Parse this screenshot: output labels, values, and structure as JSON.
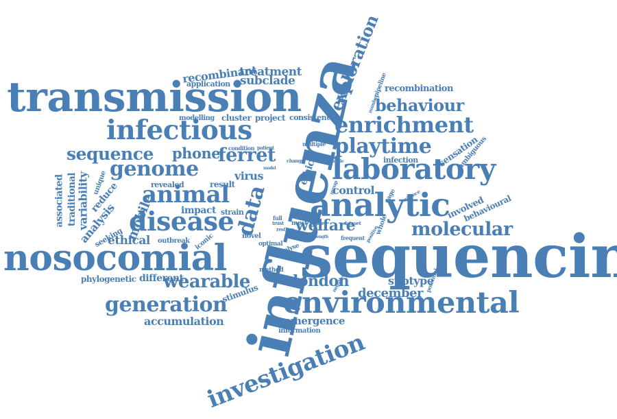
{
  "colors": {
    "word": "#4a7fb5",
    "background": "#ffffff"
  },
  "words": {
    "influenza": "influenza",
    "sequencing": "sequencing",
    "transmission": "transmission",
    "nosocomial": "nosocomial",
    "environmental": "environmental",
    "analytic": "analytic",
    "laboratory": "laboratory",
    "infectious": "infectious",
    "investigation": "investigation",
    "disease": "disease",
    "exploration": "exploration",
    "enrichment": "enrichment",
    "animal": "animal",
    "genome": "genome",
    "generation": "generation",
    "playtime": "playtime",
    "molecular": "molecular",
    "behaviour": "behaviour",
    "sequence": "sequence",
    "ferret": "ferret",
    "data": "data",
    "welfare": "welfare",
    "london": "london",
    "wearable": "wearable",
    "phone": "phone",
    "mobile": "mobile",
    "accumulation": "accumulation",
    "ethical": "ethical",
    "emergence": "emergence",
    "recombinant": "recombinant",
    "treatment": "treatment",
    "subclade": "subclade",
    "december": "december",
    "control": "control",
    "recombination": "recombination",
    "different": "different",
    "subtype": "subtype",
    "virus": "virus",
    "associated": "associated",
    "traditional": "traditional",
    "variability": "variability",
    "analysis": "analysis",
    "reduce": "reduce",
    "impact": "impact",
    "phylogenetic": "phylogenetic",
    "information": "information",
    "stimulus": "stimulus",
    "involved": "involved",
    "behavioural": "behavioural",
    "sensation": "sensation",
    "ambiguous": "ambiguous",
    "infection": "infection",
    "cluster": "cluster",
    "project": "project",
    "application": "application",
    "modelling": "modelling",
    "consistent": "consistent",
    "revealed": "revealed",
    "result": "result",
    "strain": "strain",
    "seeking": "seeking",
    "unique": "unique",
    "outbreak": "outbreak",
    "iconic": "iconic",
    "novel": "novel",
    "optimal": "optimal",
    "method": "method",
    "analyse": "analyse",
    "multiple": "multiple",
    "condition": "condition",
    "patient": "patient",
    "pipeline": "pipeline",
    "number": "number",
    "full": "full",
    "most": "most",
    "trust": "trust",
    "restless": "restless",
    "awake": "awake",
    "dataset": "dataset",
    "frequent": "frequent",
    "length": "length",
    "positive": "positive",
    "whole": "whole",
    "potential": "potential",
    "negative": "negative",
    "cage": "cage",
    "reliance": "reliance",
    "ethic": "ethic",
    "change": "change",
    "model": "model",
    "sample": "sample",
    "group": "group"
  }
}
